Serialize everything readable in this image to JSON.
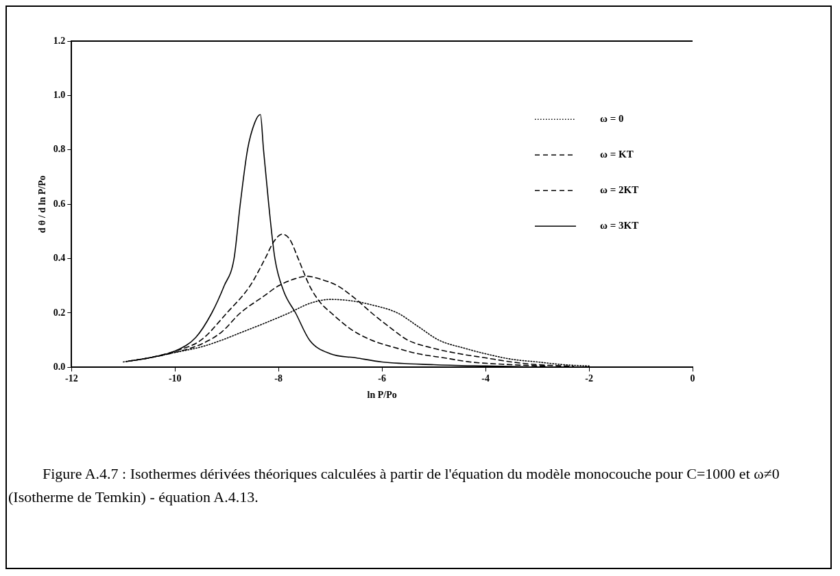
{
  "chart_data": {
    "type": "line",
    "xlabel": "ln P/Po",
    "ylabel": "d θ / d ln P/Po",
    "xlim": [
      -12,
      0
    ],
    "xticks": [
      -12,
      -10,
      -8,
      -6,
      -4,
      -2,
      0
    ],
    "ylim": [
      0,
      1.2
    ],
    "yticks": [
      {
        "value": 0,
        "label": "0.0"
      },
      {
        "value": 0.2,
        "label": "0.2"
      },
      {
        "value": 0.4,
        "label": "0.4"
      },
      {
        "value": 0.6,
        "label": "0.6"
      },
      {
        "value": 0.8,
        "label": "0.8"
      },
      {
        "value": 1,
        "label": "1.0"
      },
      {
        "value": 1.2,
        "label": "1.2"
      }
    ],
    "grid": false,
    "legend": "right",
    "marker": "none",
    "series": [
      {
        "name": "ω = 0",
        "color": "#000000",
        "line_style": "dotted",
        "x": [
          -11,
          -10.5,
          -10,
          -9.5,
          -9.1,
          -8.7,
          -8.3,
          -7.8,
          -7.4,
          -7,
          -6.6,
          -6.2,
          -5.7,
          -5.3,
          -4.9,
          -4.4,
          -4,
          -3.5,
          -3,
          -2.5,
          -2
        ],
        "values": [
          0.02,
          0.035,
          0.055,
          0.075,
          0.1,
          0.13,
          0.16,
          0.2,
          0.235,
          0.25,
          0.245,
          0.23,
          0.2,
          0.15,
          0.1,
          0.07,
          0.05,
          0.03,
          0.02,
          0.01,
          0.005
        ]
      },
      {
        "name": "ω = KT",
        "color": "#000000",
        "line_style": "dashed",
        "x": [
          -10.95,
          -10.5,
          -10,
          -9.5,
          -9.1,
          -8.74,
          -8.3,
          -8,
          -7.7,
          -7.45,
          -7.2,
          -6.86,
          -6.5,
          -6.2,
          -5.8,
          -5.5,
          -5,
          -4.5,
          -4,
          -3.5,
          -3,
          -2.3
        ],
        "values": [
          0.021,
          0.035,
          0.055,
          0.085,
          0.13,
          0.2,
          0.26,
          0.3,
          0.325,
          0.335,
          0.325,
          0.3,
          0.25,
          0.2,
          0.14,
          0.1,
          0.07,
          0.05,
          0.035,
          0.02,
          0.01,
          0.004
        ]
      },
      {
        "name": "ω = 2KT",
        "color": "#000000",
        "line_style": "dashed",
        "x": [
          -10.9,
          -10.5,
          -10,
          -9.5,
          -9,
          -8.55,
          -8.26,
          -8.1,
          -7.93,
          -7.78,
          -7.62,
          -7.4,
          -7.2,
          -6.98,
          -6.6,
          -6.2,
          -5.7,
          -5.3,
          -4.8,
          -4.3,
          -3.5,
          -2.8
        ],
        "values": [
          0.023,
          0.035,
          0.06,
          0.1,
          0.2,
          0.3,
          0.4,
          0.46,
          0.49,
          0.47,
          0.4,
          0.3,
          0.24,
          0.2,
          0.14,
          0.1,
          0.07,
          0.05,
          0.035,
          0.02,
          0.01,
          0.004
        ]
      },
      {
        "name": "ω = 3KT",
        "color": "#000000",
        "line_style": "solid",
        "x": [
          -10.85,
          -10.5,
          -10,
          -9.6,
          -9.29,
          -9.05,
          -8.86,
          -8.74,
          -8.6,
          -8.46,
          -8.35,
          -8.29,
          -8.19,
          -8.07,
          -7.9,
          -7.67,
          -7.4,
          -7,
          -6.5,
          -6,
          -5,
          -4,
          -3.2
        ],
        "values": [
          0.024,
          0.035,
          0.06,
          0.11,
          0.2,
          0.3,
          0.4,
          0.6,
          0.8,
          0.9,
          0.93,
          0.8,
          0.6,
          0.4,
          0.28,
          0.2,
          0.1,
          0.05,
          0.035,
          0.02,
          0.01,
          0.005,
          0.002
        ]
      }
    ],
    "annotations": [
      "Figure A.4.7 : Isothermes dérivées théoriques calculées à partir de l'équation du modèle monocouche pour C=1000 et ω≠0 (Isotherme de Temkin) - équation A.4.13."
    ]
  }
}
